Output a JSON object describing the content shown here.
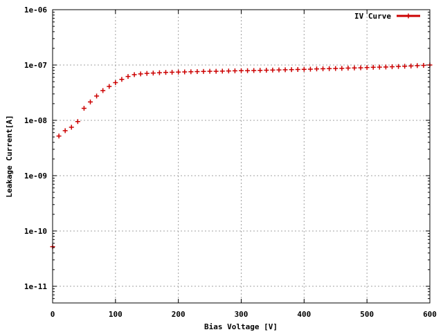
{
  "chart_data": {
    "type": "scatter",
    "title": "",
    "xlabel": "Bias Voltage [V]",
    "ylabel": "Leakage Current[A]",
    "xlim": [
      0,
      600
    ],
    "ylim": [
      5e-12,
      1e-06
    ],
    "yscale": "log",
    "grid": true,
    "legend_position": "top-right",
    "x_ticks": [
      0,
      100,
      200,
      300,
      400,
      500,
      600
    ],
    "x_tick_labels": [
      "0",
      "100",
      "200",
      "300",
      "400",
      "500",
      "600"
    ],
    "y_ticks": [
      1e-11,
      1e-10,
      1e-09,
      1e-08,
      1e-07,
      1e-06
    ],
    "y_tick_labels": [
      "1e-11",
      "1e-10",
      "1e-09",
      "1e-08",
      "1e-07",
      "1e-06"
    ],
    "series": [
      {
        "name": "IV Curve",
        "color": "#cc0000",
        "marker": "plus",
        "x": [
          0,
          10,
          20,
          30,
          40,
          50,
          60,
          70,
          80,
          90,
          100,
          110,
          120,
          130,
          140,
          150,
          160,
          170,
          180,
          190,
          200,
          210,
          220,
          230,
          240,
          250,
          260,
          270,
          280,
          290,
          300,
          310,
          320,
          330,
          340,
          350,
          360,
          370,
          380,
          390,
          400,
          410,
          420,
          430,
          440,
          450,
          460,
          470,
          480,
          490,
          500,
          510,
          520,
          530,
          540,
          550,
          560,
          570,
          580,
          590,
          600
        ],
        "y": [
          5.2e-11,
          5.2e-09,
          6.5e-09,
          7.5e-09,
          9.5e-09,
          1.65e-08,
          2.15e-08,
          2.75e-08,
          3.45e-08,
          4.1e-08,
          4.8e-08,
          5.5e-08,
          6.2e-08,
          6.7e-08,
          6.9e-08,
          7.05e-08,
          7.15e-08,
          7.25e-08,
          7.35e-08,
          7.4e-08,
          7.45e-08,
          7.5e-08,
          7.55e-08,
          7.6e-08,
          7.65e-08,
          7.7e-08,
          7.7e-08,
          7.75e-08,
          7.8e-08,
          7.85e-08,
          7.9e-08,
          7.9e-08,
          7.95e-08,
          8e-08,
          8.05e-08,
          8.1e-08,
          8.15e-08,
          8.2e-08,
          8.25e-08,
          8.3e-08,
          8.35e-08,
          8.4e-08,
          8.5e-08,
          8.55e-08,
          8.6e-08,
          8.65e-08,
          8.7e-08,
          8.8e-08,
          8.85e-08,
          8.9e-08,
          9e-08,
          9.1e-08,
          9.15e-08,
          9.2e-08,
          9.3e-08,
          9.4e-08,
          9.5e-08,
          9.6e-08,
          9.75e-08,
          9.85e-08,
          1e-07
        ]
      }
    ]
  }
}
